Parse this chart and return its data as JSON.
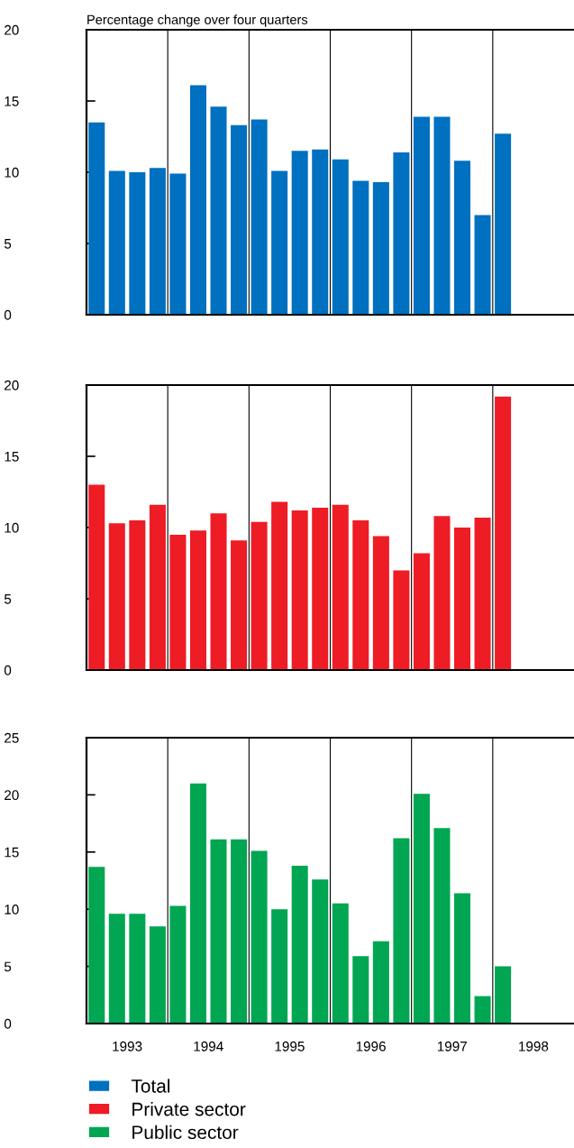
{
  "chart_data": [
    {
      "type": "bar",
      "title": "Percentage change over four quarters",
      "x": [
        1993.125,
        1993.375,
        1993.625,
        1993.875,
        1994.125,
        1994.375,
        1994.625,
        1994.875,
        1995.125,
        1995.375,
        1995.625,
        1995.875,
        1996.125,
        1996.375,
        1996.625,
        1996.875,
        1997.125,
        1997.375,
        1997.625,
        1997.875,
        1998.125
      ],
      "series": [
        {
          "name": "Total",
          "color": "#0070c0",
          "values": [
            13.5,
            10.1,
            10.0,
            10.3,
            9.9,
            16.1,
            14.6,
            13.3,
            13.7,
            10.1,
            11.5,
            11.6,
            10.9,
            9.4,
            9.3,
            11.4,
            13.9,
            13.9,
            10.8,
            7.0,
            12.7
          ]
        }
      ],
      "xlim": [
        1993,
        1999
      ],
      "ylim": [
        0,
        20
      ],
      "yticks": [
        0,
        5,
        10,
        15,
        20
      ],
      "tick_labels": "y",
      "legend": "bottom",
      "ref_lines": [
        {
          "axis": "x",
          "value": 1994,
          "label": null
        },
        {
          "axis": "x",
          "value": 1995,
          "label": null
        },
        {
          "axis": "x",
          "value": 1996,
          "label": null
        },
        {
          "axis": "x",
          "value": 1997,
          "label": null
        },
        {
          "axis": "x",
          "value": 1998,
          "label": null
        }
      ]
    },
    {
      "type": "bar",
      "x": [
        1993.125,
        1993.375,
        1993.625,
        1993.875,
        1994.125,
        1994.375,
        1994.625,
        1994.875,
        1995.125,
        1995.375,
        1995.625,
        1995.875,
        1996.125,
        1996.375,
        1996.625,
        1996.875,
        1997.125,
        1997.375,
        1997.625,
        1997.875,
        1998.125
      ],
      "series": [
        {
          "name": "Private sector",
          "color": "#ee1c25",
          "values": [
            13.0,
            10.3,
            10.5,
            11.6,
            9.5,
            9.8,
            11.0,
            9.1,
            10.4,
            11.8,
            11.2,
            11.4,
            11.6,
            10.5,
            9.4,
            7.0,
            8.2,
            10.8,
            10.0,
            10.7,
            19.2
          ]
        }
      ],
      "xlim": [
        1993,
        1999
      ],
      "ylim": [
        0,
        20
      ],
      "yticks": [
        0,
        5,
        10,
        15,
        20
      ],
      "tick_labels": "y",
      "legend": "bottom",
      "ref_lines": [
        {
          "axis": "x",
          "value": 1994,
          "label": null
        },
        {
          "axis": "x",
          "value": 1995,
          "label": null
        },
        {
          "axis": "x",
          "value": 1996,
          "label": null
        },
        {
          "axis": "x",
          "value": 1997,
          "label": null
        },
        {
          "axis": "x",
          "value": 1998,
          "label": null
        }
      ]
    },
    {
      "type": "bar",
      "x": [
        1993.125,
        1993.375,
        1993.625,
        1993.875,
        1994.125,
        1994.375,
        1994.625,
        1994.875,
        1995.125,
        1995.375,
        1995.625,
        1995.875,
        1996.125,
        1996.375,
        1996.625,
        1996.875,
        1997.125,
        1997.375,
        1997.625,
        1997.875,
        1998.125
      ],
      "series": [
        {
          "name": "Public sector",
          "color": "#00a651",
          "values": [
            13.7,
            9.6,
            9.6,
            8.5,
            10.3,
            21.0,
            16.1,
            16.1,
            15.1,
            10.0,
            13.8,
            12.6,
            10.5,
            5.9,
            7.2,
            16.2,
            20.1,
            17.1,
            11.4,
            2.4,
            5.0
          ]
        }
      ],
      "xlim": [
        1993,
        1999
      ],
      "xticks": [
        {
          "value": 1993.5,
          "label": "1993"
        },
        {
          "value": 1994.5,
          "label": "1994"
        },
        {
          "value": 1995.5,
          "label": "1995"
        },
        {
          "value": 1996.5,
          "label": "1996"
        },
        {
          "value": 1997.5,
          "label": "1997"
        },
        {
          "value": 1998.5,
          "label": "1998"
        }
      ],
      "ylim": [
        0,
        25
      ],
      "yticks": [
        0,
        5,
        10,
        15,
        20,
        25
      ],
      "legend": "bottom",
      "ref_lines": [
        {
          "axis": "x",
          "value": 1994,
          "label": null
        },
        {
          "axis": "x",
          "value": 1995,
          "label": null
        },
        {
          "axis": "x",
          "value": 1996,
          "label": null
        },
        {
          "axis": "x",
          "value": 1997,
          "label": null
        },
        {
          "axis": "x",
          "value": 1998,
          "label": null
        }
      ]
    }
  ]
}
